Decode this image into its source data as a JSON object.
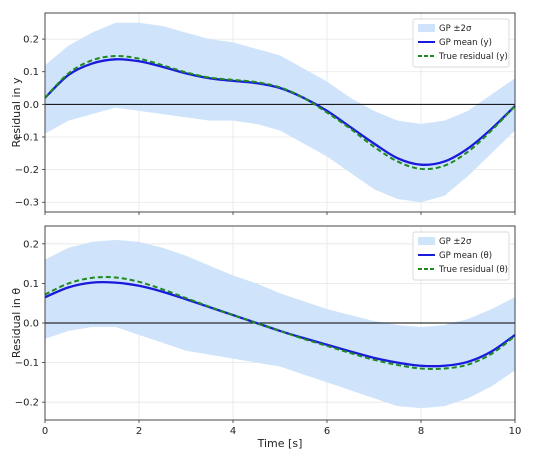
{
  "chart_data": [
    {
      "type": "line",
      "ylabel": "Residual in y",
      "xlabel": "",
      "xlim": [
        0,
        10
      ],
      "ylim": [
        -0.33,
        0.28
      ],
      "xticks": [
        0,
        2,
        4,
        6,
        8,
        10
      ],
      "yticks": [
        -0.3,
        -0.2,
        -0.1,
        0.0,
        0.1,
        0.2
      ],
      "ytick_labels": [
        "−0.3",
        "−0.2",
        "−0.1",
        "0.0",
        "0.1",
        "0.2"
      ],
      "grid": true,
      "legend_position": "top-right",
      "zero_line": true,
      "x": [
        0,
        0.5,
        1,
        1.5,
        2,
        2.5,
        3,
        3.5,
        4,
        4.5,
        5,
        5.5,
        6,
        6.5,
        7,
        7.5,
        8,
        8.5,
        9,
        9.5,
        10
      ],
      "series": [
        {
          "name": "GP ±2σ",
          "kind": "band",
          "color": "#cfe4fb",
          "lower": [
            -0.09,
            -0.05,
            -0.03,
            -0.01,
            -0.02,
            -0.03,
            -0.04,
            -0.05,
            -0.05,
            -0.06,
            -0.08,
            -0.12,
            -0.16,
            -0.21,
            -0.26,
            -0.29,
            -0.3,
            -0.28,
            -0.22,
            -0.15,
            -0.08
          ],
          "upper": [
            0.12,
            0.18,
            0.22,
            0.25,
            0.25,
            0.24,
            0.22,
            0.2,
            0.19,
            0.17,
            0.15,
            0.11,
            0.07,
            0.02,
            -0.02,
            -0.05,
            -0.06,
            -0.05,
            -0.02,
            0.03,
            0.08
          ]
        },
        {
          "name": "GP mean (y)",
          "kind": "line",
          "color": "#1a1adc",
          "dash": false,
          "values": [
            0.02,
            0.09,
            0.125,
            0.138,
            0.132,
            0.115,
            0.095,
            0.08,
            0.072,
            0.065,
            0.05,
            0.02,
            -0.02,
            -0.07,
            -0.12,
            -0.165,
            -0.185,
            -0.175,
            -0.135,
            -0.075,
            -0.005
          ]
        },
        {
          "name": "True residual (y)",
          "kind": "line",
          "color": "#1f8a1f",
          "dash": true,
          "values": [
            0.02,
            0.095,
            0.135,
            0.148,
            0.14,
            0.12,
            0.098,
            0.082,
            0.075,
            0.068,
            0.052,
            0.02,
            -0.025,
            -0.075,
            -0.13,
            -0.175,
            -0.198,
            -0.188,
            -0.145,
            -0.08,
            -0.005
          ]
        }
      ]
    },
    {
      "type": "line",
      "ylabel": "Residual in θ",
      "xlabel": "Time [s]",
      "xlim": [
        0,
        10
      ],
      "ylim": [
        -0.245,
        0.245
      ],
      "xticks": [
        0,
        2,
        4,
        6,
        8,
        10
      ],
      "yticks": [
        -0.2,
        -0.1,
        0.0,
        0.1,
        0.2
      ],
      "ytick_labels": [
        "−0.2",
        "−0.1",
        "0.0",
        "0.1",
        "0.2"
      ],
      "grid": true,
      "legend_position": "top-right",
      "zero_line": true,
      "x": [
        0,
        0.5,
        1,
        1.5,
        2,
        2.5,
        3,
        3.5,
        4,
        4.5,
        5,
        5.5,
        6,
        6.5,
        7,
        7.5,
        8,
        8.5,
        9,
        9.5,
        10
      ],
      "series": [
        {
          "name": "GP ±2σ",
          "kind": "band",
          "color": "#cfe4fb",
          "lower": [
            -0.04,
            -0.02,
            -0.01,
            -0.01,
            -0.03,
            -0.05,
            -0.07,
            -0.08,
            -0.09,
            -0.1,
            -0.11,
            -0.13,
            -0.15,
            -0.17,
            -0.19,
            -0.21,
            -0.215,
            -0.21,
            -0.19,
            -0.16,
            -0.12
          ],
          "upper": [
            0.16,
            0.19,
            0.205,
            0.21,
            0.205,
            0.19,
            0.17,
            0.145,
            0.12,
            0.1,
            0.075,
            0.055,
            0.035,
            0.02,
            0.005,
            -0.005,
            -0.01,
            -0.005,
            0.01,
            0.035,
            0.065
          ]
        },
        {
          "name": "GP mean (θ)",
          "kind": "line",
          "color": "#1a1adc",
          "dash": false,
          "values": [
            0.065,
            0.09,
            0.102,
            0.102,
            0.094,
            0.079,
            0.06,
            0.04,
            0.02,
            0.0,
            -0.02,
            -0.038,
            -0.055,
            -0.072,
            -0.088,
            -0.1,
            -0.108,
            -0.108,
            -0.098,
            -0.072,
            -0.03
          ]
        },
        {
          "name": "True residual (θ)",
          "kind": "line",
          "color": "#1f8a1f",
          "dash": true,
          "values": [
            0.072,
            0.1,
            0.114,
            0.115,
            0.104,
            0.085,
            0.063,
            0.041,
            0.02,
            0.0,
            -0.02,
            -0.04,
            -0.058,
            -0.076,
            -0.093,
            -0.106,
            -0.115,
            -0.115,
            -0.105,
            -0.078,
            -0.033
          ]
        }
      ]
    }
  ]
}
